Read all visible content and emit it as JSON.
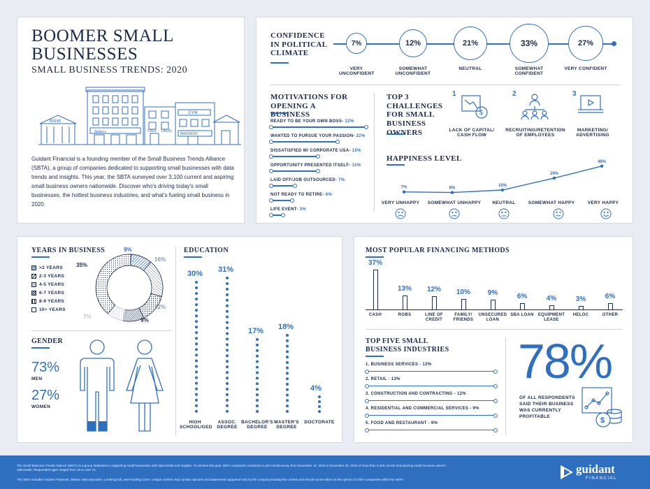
{
  "header": {
    "title": "BOOMER SMALL BUSINESSES",
    "subtitle": "SMALL BUSINESS TRENDS: 2020",
    "intro": "Guidant Financial is a founding member of the Small Business Trends Alliance (SBTA), a group of companies dedicated to supporting small businesses with data trends and insights. This year, the SBTA surveyed over 3,100 current and aspiring small business owners nationwide. Discover who's driving today's small businesses, the hottest business industries, and what's fueling small business in 2020.",
    "building_signs": [
      "BANK",
      "Bakery",
      "GYM",
      "CAFE",
      "DRUG",
      "BREWERY"
    ]
  },
  "confidence": {
    "title": "CONFIDENCE IN POLITICAL CLIMATE",
    "items": [
      {
        "label": "VERY UNCONFIDENT",
        "value": "7%"
      },
      {
        "label": "SOMEWHAT UNCONFIDENT",
        "value": "12%"
      },
      {
        "label": "NEUTRAL",
        "value": "21%"
      },
      {
        "label": "SOMEWHAT CONFIDENT",
        "value": "33%"
      },
      {
        "label": "VERY CONFIDENT",
        "value": "27%"
      }
    ]
  },
  "motivations": {
    "title": "MOTIVATIONS FOR OPENING A BUSINESS",
    "items": [
      {
        "label": "READY TO BE YOUR OWN BOSS",
        "value": "32%",
        "fraction": 0.32
      },
      {
        "label": "WANTED TO PURSUE YOUR PASSION",
        "value": "22%",
        "fraction": 0.22
      },
      {
        "label": "DISSATISFIED W/ CORPORATE USA",
        "value": "15%",
        "fraction": 0.15
      },
      {
        "label": "OPPORTUNITY PRESENTED ITSELF",
        "value": "15%",
        "fraction": 0.15
      },
      {
        "label": "LAID OFF/JOB OUTSOURCED",
        "value": "7%",
        "fraction": 0.07
      },
      {
        "label": "NOT READY TO RETIRE",
        "value": "6%",
        "fraction": 0.06
      },
      {
        "label": "LIFE EVENT",
        "value": "3%",
        "fraction": 0.03
      }
    ]
  },
  "challenges": {
    "title": "TOP 3 CHALLENGES FOR SMALL BUSINESS OWNERS",
    "items": [
      {
        "num": "1",
        "label": "LACK OF CAPITAL/ CASH FLOW",
        "icon": "cash-flow-icon"
      },
      {
        "num": "2",
        "label": "RECRUITING/RETENTION OF EMPLOYEES",
        "icon": "employees-icon"
      },
      {
        "num": "3",
        "label": "MARKETING/ ADVERTISING",
        "icon": "marketing-icon"
      }
    ]
  },
  "happiness": {
    "title": "HAPPINESS LEVEL",
    "items": [
      {
        "label": "VERY UNHAPPY",
        "value": "7%"
      },
      {
        "label": "SOMEWHAT UNHAPPY",
        "value": "6%"
      },
      {
        "label": "NEUTRAL",
        "value": "10%"
      },
      {
        "label": "SOMEWHAT HAPPY",
        "value": "29%"
      },
      {
        "label": "VERY HAPPY",
        "value": "48%"
      }
    ]
  },
  "years": {
    "title": "YEARS IN BUSINESS",
    "legend": [
      ">2 YEARS",
      "2-3 YEARS",
      "4-5 YEARS",
      "6-7 YEARS",
      "8-9 YEARS",
      "10+ YEARS"
    ],
    "labels": [
      "9%",
      "16%",
      "12%",
      "9%",
      "7%",
      "35%"
    ]
  },
  "gender": {
    "title": "GENDER",
    "men_value": "73%",
    "men_label": "MEN",
    "women_value": "27%",
    "women_label": "WOMEN"
  },
  "education": {
    "title": "EDUCATION",
    "items": [
      {
        "label": "HIGH SCHOOL/GED",
        "value": "30%"
      },
      {
        "label": "ASSOC. DEGREE",
        "value": "31%"
      },
      {
        "label": "BACHELOR'S DEGREE",
        "value": "17%"
      },
      {
        "label": "MASTER'S DEGREE",
        "value": "18%"
      },
      {
        "label": "DOCTORATE",
        "value": "4%"
      }
    ]
  },
  "financing": {
    "title": "MOST POPULAR FINANCING METHODS",
    "items": [
      {
        "label": "CASH",
        "value": "37%"
      },
      {
        "label": "ROBS",
        "value": "13%"
      },
      {
        "label": "LINE OF CREDIT",
        "value": "12%"
      },
      {
        "label": "FAMILY/ FRIENDS",
        "value": "10%"
      },
      {
        "label": "UNSECURED LOAN",
        "value": "9%"
      },
      {
        "label": "SBA LOAN",
        "value": "6%"
      },
      {
        "label": "EQUIPMENT LEASE",
        "value": "4%"
      },
      {
        "label": "HELOC",
        "value": "3%"
      },
      {
        "label": "OTHER",
        "value": "6%"
      }
    ]
  },
  "industries": {
    "title": "TOP FIVE SMALL BUSINESS INDUSTRIES",
    "items": [
      {
        "label": "1. BUSINESS SERVICES - 13%"
      },
      {
        "label": "2. RETAIL - 13%"
      },
      {
        "label": "3. CONSTRUCTION AND CONTRACTING - 12%"
      },
      {
        "label": "4. RESIDENTIAL AND COMMERCIAL SERVICES - 9%"
      },
      {
        "label": "5. FOOD AND RESTAURANT - 9%"
      }
    ]
  },
  "profitable": {
    "value": "78%",
    "text": "OF ALL RESPONDENTS SAID THEIR BUSINESS WAS CURRENTLY PROFITABLE"
  },
  "footer": {
    "line1": "The Small Business Trends Alliance (SBTA) is a group dedicated to supporting small businesses with data trends and insights. To achieve this goal, SBTA companies conducted a joint email survey from November 12, 2019 to November 25, 2019 of more than 3,100 current and aspiring small business owners nationwide. Respondent ages ranged from 18 to over 70.",
    "line2": "The SBTA includes Guidant Financial, Deluxe, MyCorporation, LendingClub, and Funding Circle. Unique content may contain opinions and statements supported only by the company hosting the content and should not be taken as the opinion of other companies within the SBTA.",
    "brand": "guidant",
    "brand_sub": "FINANCIAL"
  },
  "colors": {
    "navy": "#1b2a4a",
    "blue": "#2f6fc0",
    "footer": "#2f6fc0"
  },
  "chart_data": [
    {
      "type": "bar",
      "title": "CONFIDENCE IN POLITICAL CLIMATE",
      "categories": [
        "VERY UNCONFIDENT",
        "SOMEWHAT UNCONFIDENT",
        "NEUTRAL",
        "SOMEWHAT CONFIDENT",
        "VERY CONFIDENT"
      ],
      "values": [
        7,
        12,
        21,
        33,
        27
      ]
    },
    {
      "type": "bar",
      "title": "MOTIVATIONS FOR OPENING A BUSINESS",
      "categories": [
        "READY TO BE YOUR OWN BOSS",
        "WANTED TO PURSUE YOUR PASSION",
        "DISSATISFIED W/ CORPORATE USA",
        "OPPORTUNITY PRESENTED ITSELF",
        "LAID OFF/JOB OUTSOURCED",
        "NOT READY TO RETIRE",
        "LIFE EVENT"
      ],
      "values": [
        32,
        22,
        15,
        15,
        7,
        6,
        3
      ]
    },
    {
      "type": "line",
      "title": "HAPPINESS LEVEL",
      "categories": [
        "VERY UNHAPPY",
        "SOMEWHAT UNHAPPY",
        "NEUTRAL",
        "SOMEWHAT HAPPY",
        "VERY HAPPY"
      ],
      "values": [
        7,
        6,
        10,
        29,
        48
      ]
    },
    {
      "type": "pie",
      "title": "YEARS IN BUSINESS",
      "categories": [
        ">2 YEARS",
        "2-3 YEARS",
        "4-5 YEARS",
        "6-7 YEARS",
        "8-9 YEARS",
        "10+ YEARS"
      ],
      "values": [
        9,
        16,
        12,
        9,
        7,
        35
      ]
    },
    {
      "type": "bar",
      "title": "GENDER",
      "categories": [
        "MEN",
        "WOMEN"
      ],
      "values": [
        73,
        27
      ]
    },
    {
      "type": "bar",
      "title": "EDUCATION",
      "categories": [
        "HIGH SCHOOL/GED",
        "ASSOC. DEGREE",
        "BACHELOR'S DEGREE",
        "MASTER'S DEGREE",
        "DOCTORATE"
      ],
      "values": [
        30,
        31,
        17,
        18,
        4
      ]
    },
    {
      "type": "bar",
      "title": "MOST POPULAR FINANCING METHODS",
      "categories": [
        "CASH",
        "ROBS",
        "LINE OF CREDIT",
        "FAMILY/ FRIENDS",
        "UNSECURED LOAN",
        "SBA LOAN",
        "EQUIPMENT LEASE",
        "HELOC",
        "OTHER"
      ],
      "values": [
        37,
        13,
        12,
        10,
        9,
        6,
        4,
        3,
        6
      ]
    },
    {
      "type": "bar",
      "title": "TOP FIVE SMALL BUSINESS INDUSTRIES",
      "categories": [
        "BUSINESS SERVICES",
        "RETAIL",
        "CONSTRUCTION AND CONTRACTING",
        "RESIDENTIAL AND COMMERCIAL SERVICES",
        "FOOD AND RESTAURANT"
      ],
      "values": [
        13,
        13,
        12,
        9,
        9
      ]
    }
  ]
}
